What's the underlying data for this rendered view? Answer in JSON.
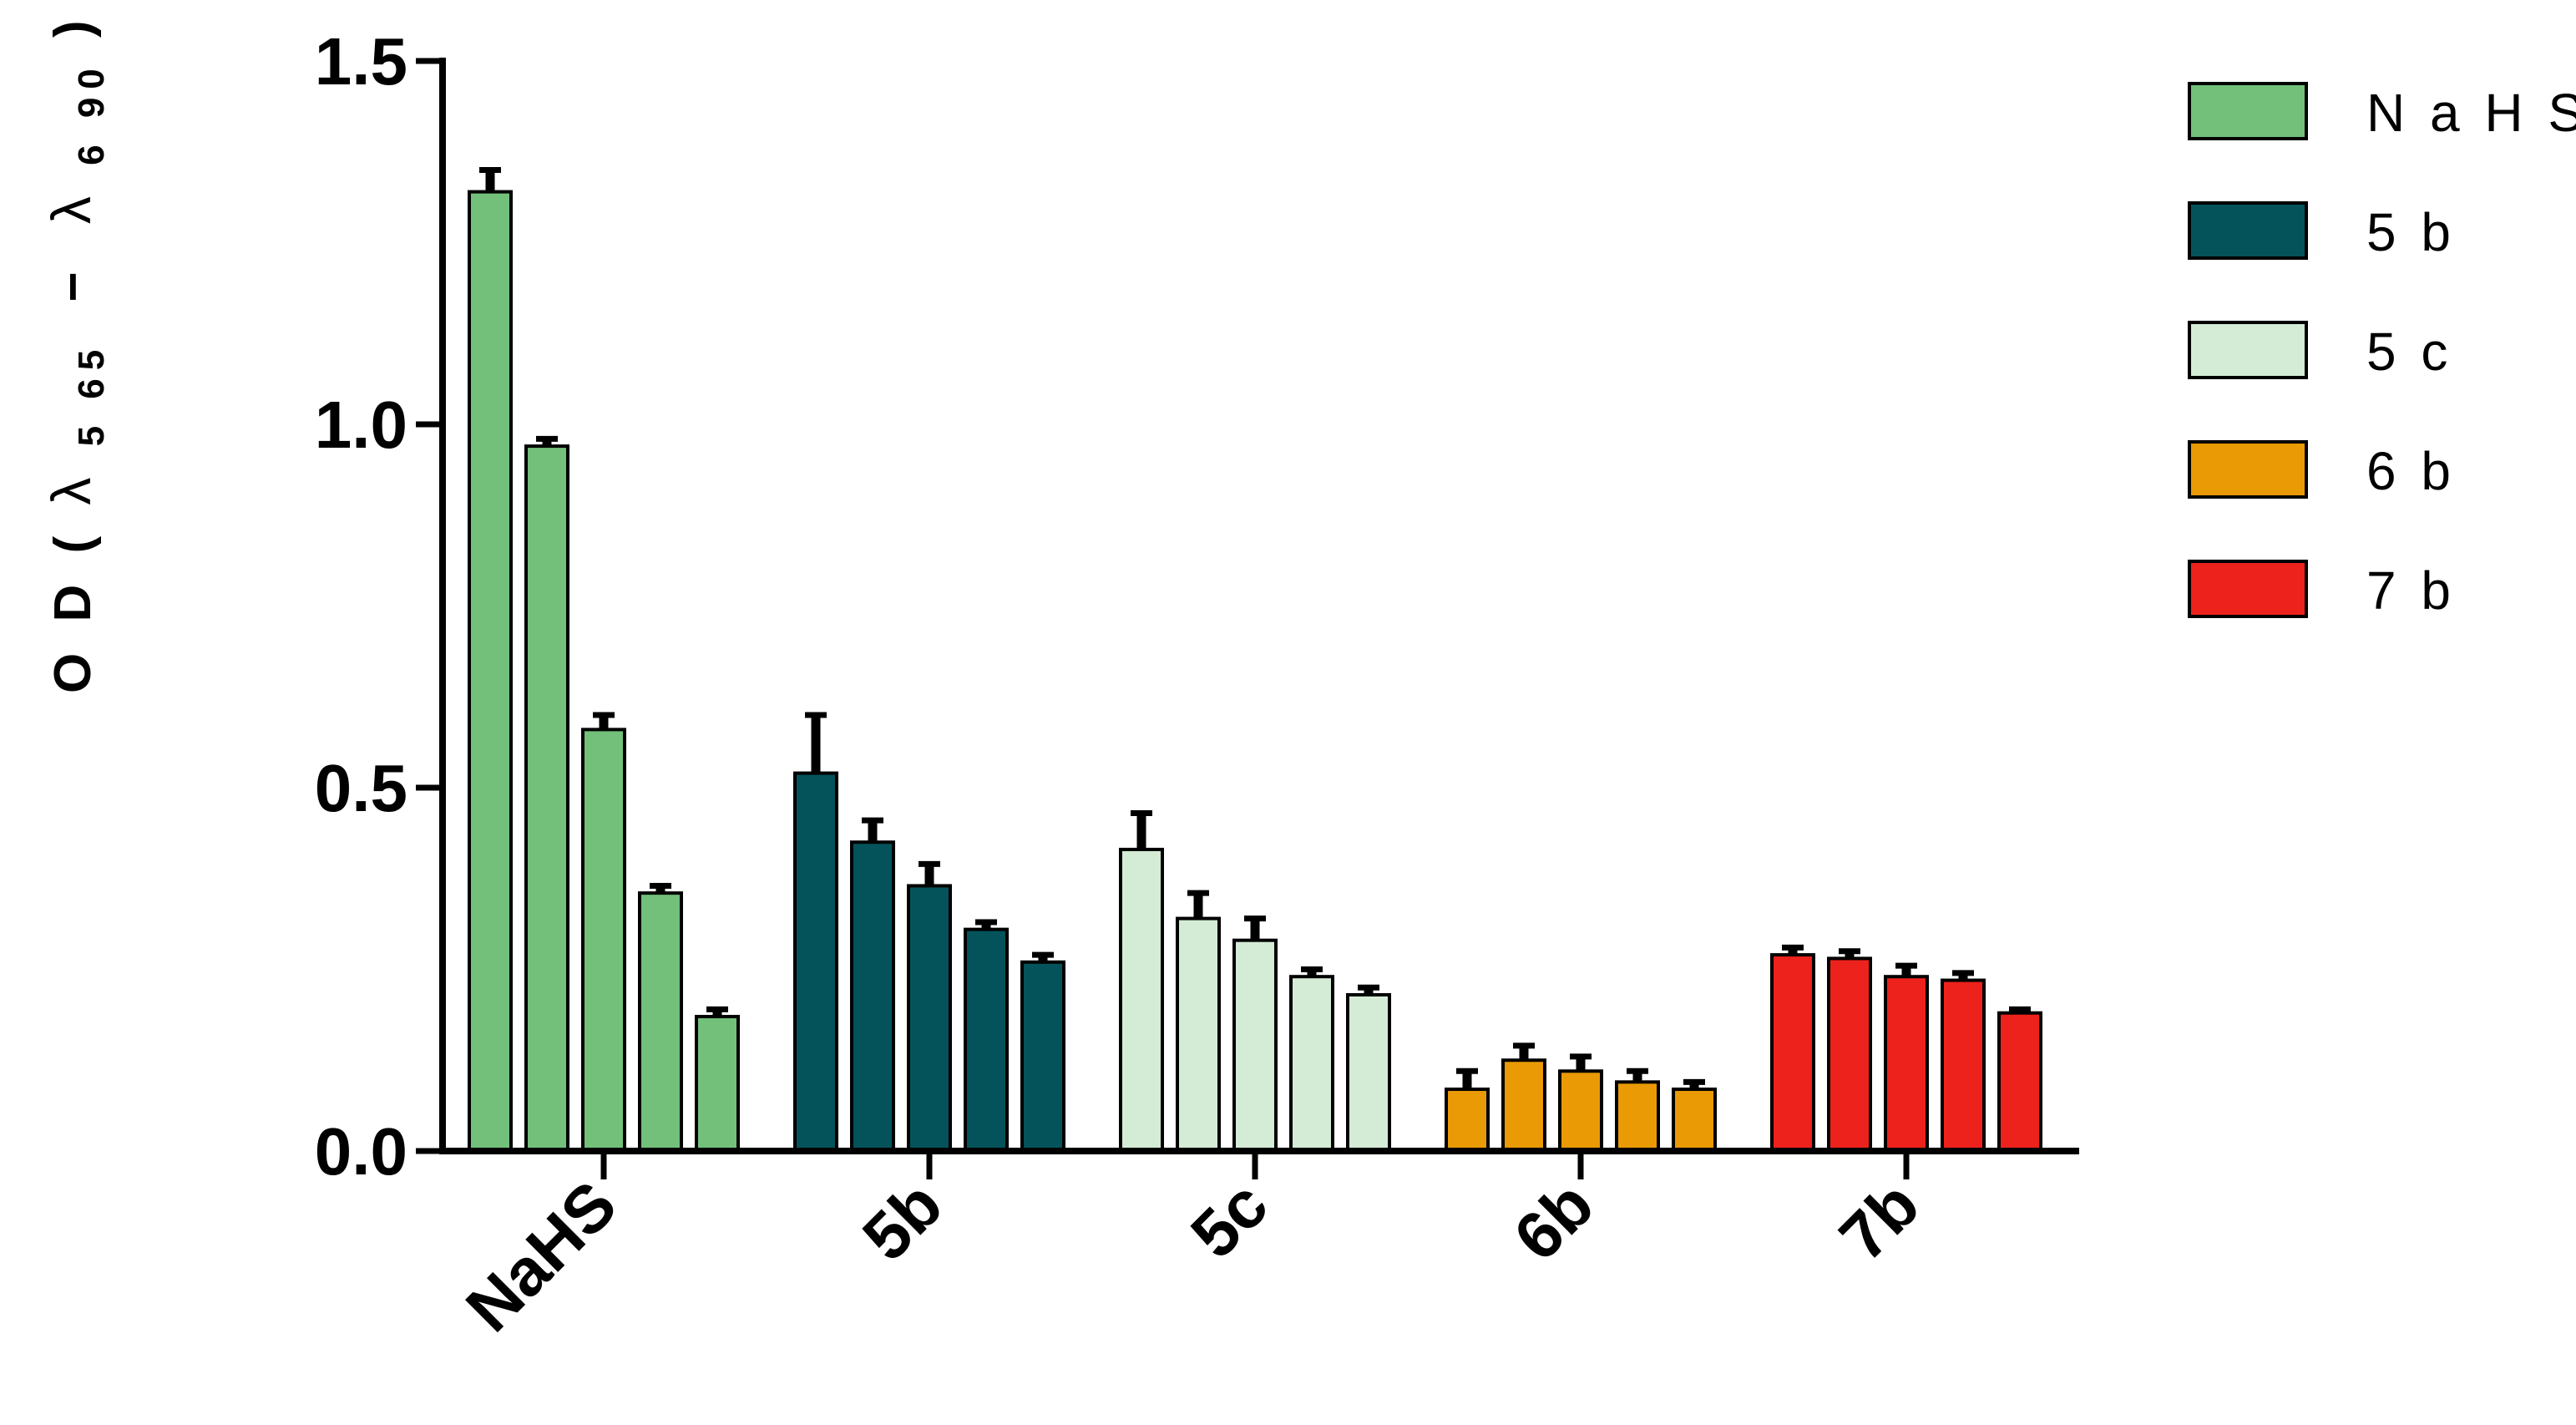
{
  "chart_data": {
    "type": "bar",
    "categories": [
      "NaHS",
      "5b",
      "5c",
      "6b",
      "7b"
    ],
    "series": [
      {
        "name": "NaHS",
        "color": "#73c07a",
        "values": [
          1.32,
          0.97,
          0.58,
          0.355,
          0.185
        ],
        "errors": [
          0.03,
          0.01,
          0.02,
          0.01,
          0.01
        ]
      },
      {
        "name": "5b",
        "color": "#04535b",
        "values": [
          0.52,
          0.425,
          0.365,
          0.305,
          0.26
        ],
        "errors": [
          0.08,
          0.03,
          0.03,
          0.01,
          0.01
        ]
      },
      {
        "name": "5c",
        "color": "#d4ebd5",
        "values": [
          0.415,
          0.32,
          0.29,
          0.24,
          0.215
        ],
        "errors": [
          0.05,
          0.035,
          0.03,
          0.01,
          0.01
        ]
      },
      {
        "name": "6b",
        "color": "#e99a05",
        "values": [
          0.085,
          0.125,
          0.11,
          0.095,
          0.085
        ],
        "errors": [
          0.025,
          0.02,
          0.02,
          0.015,
          0.01
        ]
      },
      {
        "name": "7b",
        "color": "#ed221c",
        "values": [
          0.27,
          0.265,
          0.24,
          0.235,
          0.19
        ],
        "errors": [
          0.01,
          0.01,
          0.015,
          0.01,
          0.005
        ]
      }
    ],
    "yticks": [
      "0.0",
      "0.5",
      "1.0",
      "1.5"
    ],
    "ylim": [
      0,
      1.5
    ],
    "ylabel": {
      "main": "O D  (",
      "lambda1": "λ",
      "sub1": "5 65",
      "minus": "−",
      "lambda2": "λ",
      "sub2": "6 90",
      "close": ")"
    },
    "legend_position": "top-right",
    "grid": false
  }
}
